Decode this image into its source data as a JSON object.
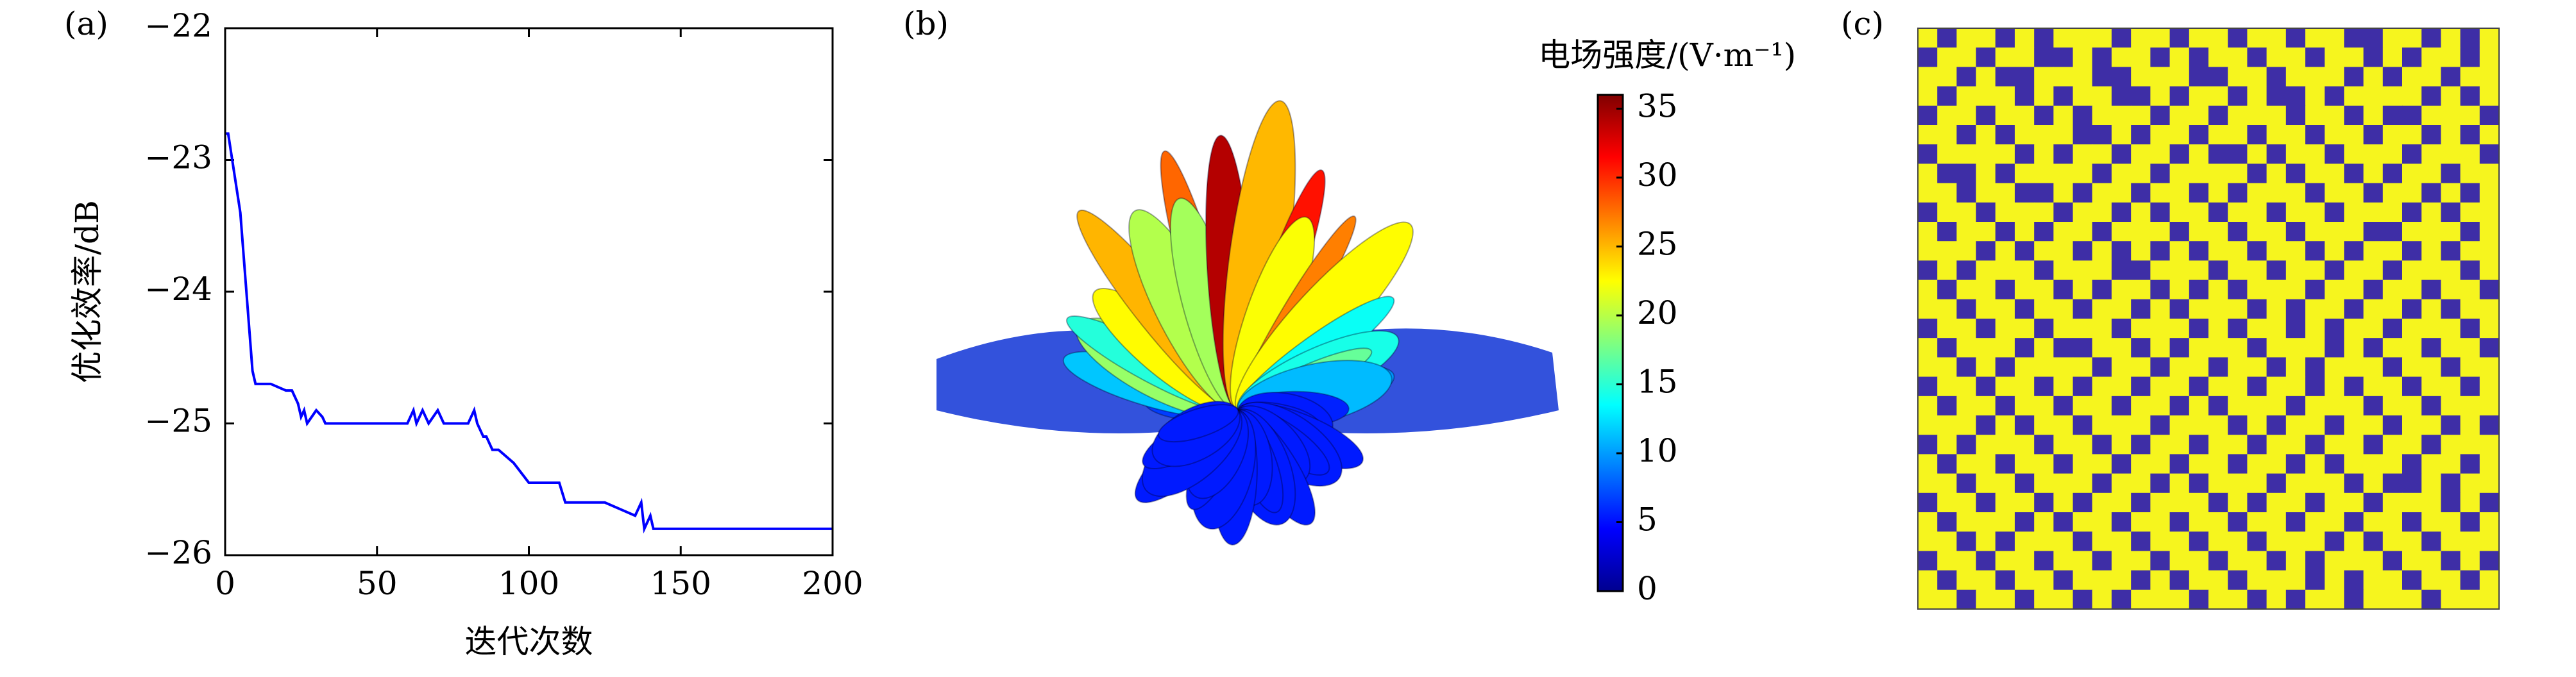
{
  "chart_data": [
    {
      "type": "line",
      "label": "(a)",
      "xlabel": "迭代次数",
      "ylabel": "优化效率/dB",
      "xlim": [
        0,
        200
      ],
      "ylim": [
        -26,
        -22
      ],
      "xticks": [
        0,
        50,
        100,
        150,
        200
      ],
      "yticks": [
        {
          "value": -26,
          "label": "−26"
        },
        {
          "value": -25,
          "label": "−25"
        },
        {
          "value": -24,
          "label": "−24"
        },
        {
          "value": -23,
          "label": "−23"
        },
        {
          "value": -22,
          "label": "−22"
        }
      ],
      "series": [
        {
          "color": "#0000ff",
          "x": [
            0,
            1,
            3,
            5,
            6,
            7,
            8,
            9,
            10,
            11,
            15,
            20,
            22,
            24,
            25,
            26,
            27,
            30,
            32,
            33,
            35,
            40,
            50,
            60,
            62,
            63,
            65,
            67,
            70,
            72,
            75,
            80,
            82,
            83,
            85,
            86,
            88,
            90,
            95,
            100,
            105,
            110,
            112,
            115,
            120,
            125,
            130,
            135,
            137,
            138,
            140,
            141,
            142,
            143,
            145,
            150,
            200
          ],
          "values": [
            -22.8,
            -22.8,
            -23.1,
            -23.4,
            -23.7,
            -24,
            -24.3,
            -24.6,
            -24.7,
            -24.7,
            -24.7,
            -24.75,
            -24.75,
            -24.85,
            -24.95,
            -24.9,
            -25.0,
            -24.9,
            -24.95,
            -25.0,
            -25.0,
            -25.0,
            -25.0,
            -25.0,
            -24.9,
            -25.0,
            -24.9,
            -25.0,
            -24.9,
            -25.0,
            -25.0,
            -25.0,
            -24.9,
            -25.0,
            -25.1,
            -25.1,
            -25.2,
            -25.2,
            -25.3,
            -25.45,
            -25.45,
            -25.45,
            -25.6,
            -25.6,
            -25.6,
            -25.6,
            -25.65,
            -25.7,
            -25.6,
            -25.8,
            -25.7,
            -25.8,
            -25.8,
            -25.8,
            -25.8,
            -25.8,
            -25.8
          ]
        }
      ]
    },
    {
      "type": "surface3d",
      "label": "(b)",
      "colormap": "jet",
      "colorbar": {
        "title": "电场强度/(V·m⁻¹)",
        "lim": [
          0,
          36
        ],
        "ticks": [
          0,
          5,
          10,
          15,
          20,
          25,
          30,
          35
        ]
      }
    },
    {
      "type": "heatmap",
      "label": "(c)",
      "colors": [
        "#3e2ea6",
        "#f6f51e"
      ],
      "matrix": [
        [
          1,
          0,
          1,
          1,
          0,
          1,
          0,
          1,
          1,
          1,
          0,
          1,
          1,
          0,
          1,
          1,
          0,
          1,
          1,
          0,
          1,
          1,
          0,
          0,
          1,
          1,
          0,
          1,
          0,
          1
        ],
        [
          0,
          1,
          1,
          0,
          1,
          1,
          0,
          0,
          1,
          0,
          1,
          1,
          0,
          1,
          0,
          1,
          1,
          0,
          1,
          1,
          0,
          1,
          1,
          0,
          1,
          0,
          1,
          1,
          0,
          1
        ],
        [
          1,
          1,
          0,
          1,
          0,
          0,
          1,
          1,
          1,
          0,
          0,
          1,
          1,
          1,
          0,
          0,
          1,
          1,
          0,
          1,
          1,
          1,
          0,
          1,
          0,
          1,
          1,
          0,
          1,
          1
        ],
        [
          1,
          0,
          1,
          1,
          1,
          0,
          1,
          0,
          1,
          1,
          0,
          0,
          1,
          0,
          1,
          1,
          0,
          1,
          0,
          0,
          1,
          0,
          1,
          1,
          1,
          1,
          0,
          1,
          0,
          1
        ],
        [
          0,
          1,
          1,
          0,
          1,
          1,
          0,
          1,
          0,
          1,
          1,
          1,
          0,
          1,
          1,
          0,
          1,
          1,
          1,
          0,
          1,
          1,
          0,
          1,
          0,
          0,
          1,
          1,
          1,
          0
        ],
        [
          1,
          1,
          0,
          1,
          0,
          1,
          1,
          1,
          0,
          0,
          1,
          0,
          1,
          1,
          0,
          1,
          1,
          0,
          1,
          1,
          0,
          1,
          1,
          0,
          1,
          1,
          0,
          1,
          0,
          1
        ],
        [
          0,
          1,
          1,
          1,
          1,
          0,
          1,
          0,
          1,
          1,
          0,
          1,
          1,
          0,
          1,
          0,
          0,
          1,
          0,
          1,
          1,
          0,
          1,
          1,
          1,
          0,
          1,
          1,
          1,
          0
        ],
        [
          1,
          0,
          0,
          1,
          0,
          1,
          1,
          1,
          1,
          0,
          1,
          1,
          0,
          1,
          1,
          1,
          1,
          0,
          1,
          0,
          1,
          1,
          0,
          1,
          0,
          1,
          1,
          0,
          1,
          1
        ],
        [
          1,
          1,
          0,
          1,
          1,
          0,
          0,
          1,
          0,
          1,
          1,
          0,
          1,
          1,
          0,
          1,
          0,
          1,
          1,
          1,
          0,
          1,
          1,
          0,
          1,
          1,
          0,
          1,
          0,
          1
        ],
        [
          0,
          1,
          1,
          0,
          1,
          1,
          1,
          0,
          1,
          1,
          0,
          1,
          0,
          1,
          1,
          0,
          1,
          1,
          0,
          1,
          1,
          0,
          1,
          1,
          1,
          0,
          1,
          0,
          1,
          1
        ],
        [
          1,
          0,
          1,
          1,
          0,
          1,
          0,
          1,
          1,
          0,
          1,
          1,
          1,
          0,
          1,
          1,
          0,
          1,
          1,
          0,
          1,
          1,
          1,
          0,
          0,
          1,
          1,
          1,
          0,
          1
        ],
        [
          1,
          1,
          1,
          0,
          1,
          0,
          1,
          1,
          0,
          1,
          0,
          1,
          0,
          1,
          0,
          1,
          1,
          0,
          1,
          1,
          0,
          1,
          0,
          1,
          1,
          0,
          1,
          0,
          1,
          1
        ],
        [
          0,
          1,
          0,
          1,
          1,
          1,
          0,
          1,
          1,
          1,
          0,
          0,
          1,
          1,
          1,
          0,
          1,
          1,
          0,
          1,
          1,
          0,
          1,
          1,
          0,
          1,
          1,
          1,
          0,
          1
        ],
        [
          1,
          0,
          1,
          1,
          0,
          1,
          1,
          0,
          1,
          0,
          1,
          1,
          0,
          1,
          0,
          1,
          0,
          1,
          1,
          1,
          0,
          1,
          1,
          0,
          1,
          1,
          0,
          1,
          1,
          0
        ],
        [
          1,
          1,
          0,
          1,
          1,
          0,
          1,
          1,
          0,
          1,
          1,
          0,
          1,
          0,
          1,
          1,
          1,
          0,
          1,
          0,
          1,
          1,
          0,
          1,
          1,
          0,
          1,
          0,
          1,
          1
        ],
        [
          0,
          1,
          1,
          0,
          1,
          1,
          0,
          1,
          1,
          1,
          0,
          1,
          1,
          1,
          0,
          1,
          0,
          1,
          1,
          0,
          1,
          0,
          1,
          1,
          0,
          1,
          1,
          1,
          0,
          1
        ],
        [
          1,
          0,
          1,
          1,
          1,
          0,
          1,
          0,
          0,
          1,
          1,
          0,
          1,
          0,
          1,
          1,
          1,
          0,
          1,
          1,
          1,
          0,
          1,
          0,
          1,
          1,
          0,
          1,
          1,
          0
        ],
        [
          1,
          1,
          0,
          1,
          0,
          1,
          1,
          1,
          1,
          0,
          1,
          1,
          0,
          1,
          1,
          0,
          1,
          1,
          0,
          1,
          0,
          1,
          1,
          1,
          0,
          1,
          1,
          0,
          1,
          1
        ],
        [
          0,
          1,
          1,
          0,
          1,
          1,
          0,
          1,
          0,
          1,
          1,
          0,
          1,
          1,
          0,
          1,
          1,
          0,
          1,
          1,
          0,
          1,
          0,
          1,
          1,
          0,
          1,
          1,
          0,
          1
        ],
        [
          1,
          0,
          1,
          1,
          0,
          1,
          1,
          0,
          1,
          1,
          0,
          1,
          1,
          0,
          1,
          0,
          1,
          1,
          1,
          0,
          1,
          1,
          1,
          0,
          1,
          1,
          0,
          1,
          1,
          1
        ],
        [
          1,
          1,
          1,
          0,
          1,
          0,
          1,
          1,
          0,
          1,
          1,
          1,
          0,
          1,
          1,
          1,
          0,
          1,
          0,
          1,
          1,
          0,
          1,
          1,
          0,
          1,
          1,
          0,
          1,
          0
        ],
        [
          0,
          1,
          0,
          1,
          1,
          1,
          0,
          1,
          1,
          0,
          1,
          0,
          1,
          1,
          0,
          1,
          1,
          0,
          1,
          1,
          0,
          1,
          1,
          0,
          1,
          1,
          0,
          1,
          1,
          1
        ],
        [
          1,
          0,
          1,
          1,
          0,
          1,
          1,
          0,
          1,
          1,
          0,
          1,
          1,
          0,
          1,
          1,
          0,
          1,
          1,
          0,
          1,
          0,
          1,
          1,
          1,
          0,
          1,
          1,
          0,
          1
        ],
        [
          1,
          1,
          0,
          1,
          1,
          0,
          1,
          1,
          1,
          0,
          1,
          1,
          0,
          1,
          0,
          1,
          1,
          1,
          0,
          1,
          1,
          1,
          0,
          1,
          0,
          0,
          1,
          0,
          1,
          1
        ],
        [
          0,
          1,
          1,
          0,
          1,
          1,
          0,
          1,
          0,
          1,
          1,
          0,
          1,
          1,
          1,
          0,
          1,
          0,
          1,
          1,
          0,
          1,
          1,
          0,
          1,
          1,
          1,
          0,
          1,
          0
        ],
        [
          1,
          0,
          1,
          1,
          1,
          0,
          1,
          0,
          1,
          1,
          0,
          1,
          1,
          0,
          1,
          1,
          0,
          1,
          1,
          0,
          1,
          1,
          0,
          1,
          1,
          0,
          1,
          1,
          0,
          1
        ],
        [
          1,
          1,
          0,
          1,
          0,
          1,
          1,
          1,
          0,
          1,
          1,
          0,
          1,
          1,
          0,
          1,
          1,
          0,
          1,
          1,
          1,
          0,
          1,
          0,
          1,
          1,
          0,
          1,
          1,
          1
        ],
        [
          0,
          1,
          1,
          0,
          1,
          1,
          0,
          1,
          1,
          0,
          1,
          1,
          0,
          1,
          1,
          0,
          1,
          1,
          0,
          1,
          0,
          1,
          1,
          1,
          0,
          1,
          1,
          0,
          1,
          0
        ],
        [
          1,
          0,
          1,
          1,
          0,
          1,
          1,
          0,
          1,
          1,
          1,
          0,
          1,
          0,
          1,
          1,
          0,
          1,
          1,
          1,
          0,
          1,
          0,
          1,
          1,
          0,
          1,
          1,
          0,
          1
        ],
        [
          1,
          1,
          0,
          1,
          1,
          0,
          1,
          1,
          0,
          1,
          0,
          1,
          1,
          1,
          0,
          1,
          1,
          0,
          1,
          0,
          1,
          1,
          0,
          1,
          1,
          1,
          0,
          1,
          1,
          1
        ]
      ]
    }
  ]
}
